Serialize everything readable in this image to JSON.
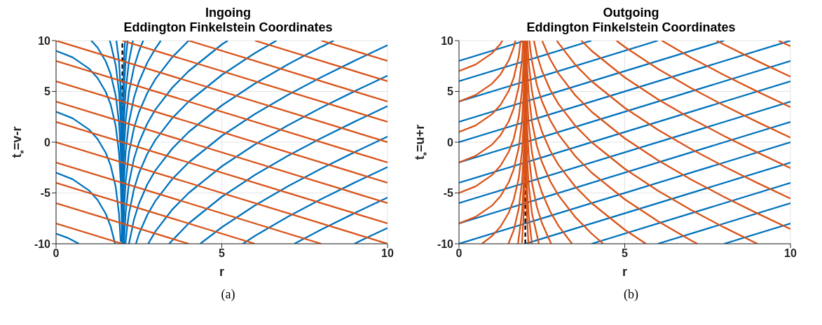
{
  "chart_data": [
    {
      "type": "line",
      "title": "Ingoing",
      "subtitle": "Eddington Finkelstein Coordinates",
      "xlabel": "r",
      "ylabel": "t$_{*}$=v-r",
      "xlim": [
        0,
        10
      ],
      "xticks": [
        0,
        5,
        10
      ],
      "ylim": [
        -10,
        10
      ],
      "yticks": [
        -10,
        -5,
        0,
        5,
        10
      ],
      "grid": true,
      "annotations": [
        "(a)"
      ],
      "ref_lines": [
        {
          "axis": "x",
          "value": 2,
          "color": "#000000",
          "line_style": "dashed"
        }
      ],
      "series": [
        {
          "color": "#0072bd",
          "x": [
            0,
            0.5,
            1,
            1.25,
            1.5,
            1.65,
            1.8,
            1.9,
            1.95,
            1.98,
            1.988
          ],
          "values": [
            9,
            8.35,
            7.23,
            6.33,
            4.95,
            3.68,
            1.59,
            -1.08,
            -3.81,
            -7.44,
            -9.47
          ]
        },
        {
          "color": "#0072bd",
          "x": [
            0,
            0.5,
            1,
            1.25,
            1.5,
            1.65,
            1.8,
            1.9,
            1.95
          ],
          "values": [
            3,
            2.35,
            1.23,
            0.33,
            -1.05,
            -2.32,
            -4.41,
            -7.08,
            -9.81
          ]
        },
        {
          "color": "#0072bd",
          "x": [
            0,
            0.5,
            1,
            1.25,
            1.5,
            1.65,
            1.78
          ],
          "values": [
            -3,
            -3.65,
            -4.77,
            -5.67,
            -7.05,
            -8.32,
            -10
          ]
        },
        {
          "color": "#0072bd",
          "x": [
            0,
            0.35,
            0.69
          ],
          "values": [
            -9,
            -9.42,
            -10
          ]
        },
        {
          "color": "#0072bd",
          "x": [
            1.06,
            1.25,
            1.5,
            1.65,
            1.8,
            1.9,
            1.95,
            1.98,
            1.99,
            1.995
          ],
          "values": [
            10,
            9.33,
            7.95,
            6.68,
            4.59,
            1.92,
            -0.81,
            -4.44,
            -7.2,
            -9.97
          ]
        },
        {
          "color": "#0072bd",
          "x": [
            1.62,
            1.65,
            1.8,
            1.9,
            1.95,
            1.98,
            1.99,
            1.997
          ],
          "values": [
            10,
            9.68,
            7.59,
            4.92,
            2.19,
            -1.44,
            -4.2,
            -9
          ]
        },
        {
          "color": "#0072bd",
          "x": [
            1.82,
            1.9,
            1.95,
            1.98,
            1.99,
            1.995,
            1.998
          ],
          "values": [
            10,
            7.92,
            5.19,
            1.56,
            -1.2,
            -3.97,
            -7.63
          ]
        },
        {
          "color": "#0072bd",
          "x": [
            9,
            9.5,
            10
          ],
          "values": [
            -10,
            -9.21,
            -8.45
          ]
        },
        {
          "color": "#0072bd",
          "x": [
            7.19,
            8,
            9,
            10
          ],
          "values": [
            -10,
            -8.61,
            -6.99,
            -5.45
          ]
        },
        {
          "color": "#0072bd",
          "x": [
            5.64,
            6,
            7,
            8,
            9,
            10
          ],
          "values": [
            -10,
            -9.23,
            -7.33,
            -5.61,
            -3.99,
            -2.45
          ]
        },
        {
          "color": "#0072bd",
          "x": [
            4.35,
            5,
            6,
            7,
            8,
            9,
            10
          ],
          "values": [
            -10,
            -8.38,
            -6.23,
            -4.33,
            -2.61,
            -0.99,
            0.55
          ]
        },
        {
          "color": "#0072bd",
          "x": [
            3.41,
            4,
            5,
            6,
            7,
            8,
            9,
            10
          ],
          "values": [
            -10,
            -8,
            -5.38,
            -3.23,
            -1.33,
            0.39,
            2.01,
            3.55
          ]
        },
        {
          "color": "#0072bd",
          "x": [
            2.78,
            3,
            3.5,
            4,
            5,
            6,
            7,
            8,
            9,
            10
          ],
          "values": [
            -10,
            -8.77,
            -6.65,
            -5,
            -2.38,
            -0.23,
            1.67,
            3.39,
            5.01,
            6.55
          ]
        },
        {
          "color": "#0072bd",
          "x": [
            2.41,
            2.5,
            2.75,
            3,
            3.5,
            4,
            5,
            6,
            7,
            8,
            9,
            10
          ],
          "values": [
            -10,
            -9.05,
            -7.17,
            -5.77,
            -3.65,
            -2,
            0.62,
            2.77,
            4.67,
            6.39,
            8.01,
            9.55
          ]
        },
        {
          "color": "#0072bd",
          "x": [
            2.2,
            2.35,
            2.5,
            2.75,
            3,
            3.5,
            4,
            5,
            6,
            7,
            8,
            8.38
          ],
          "values": [
            -10,
            -7.62,
            -6.05,
            -4.17,
            -2.77,
            -0.65,
            1,
            3.62,
            5.77,
            7.67,
            9.39,
            10
          ]
        },
        {
          "color": "#0072bd",
          "x": [
            2.095,
            2.15,
            2.2,
            2.35,
            2.5,
            2.75,
            3,
            3.5,
            4,
            5,
            6,
            6.65
          ],
          "values": [
            -10,
            -8.21,
            -7.01,
            -4.62,
            -3.05,
            -1.17,
            0.23,
            2.35,
            4,
            6.62,
            8.77,
            10
          ]
        },
        {
          "color": "#0072bd",
          "x": [
            2.048,
            2.1,
            2.2,
            2.35,
            2.5,
            2.75,
            3,
            3.5,
            4,
            5,
            5.18
          ],
          "values": [
            -10,
            -6.88,
            -4.01,
            -1.62,
            -0.05,
            1.83,
            3.23,
            5.35,
            7,
            9.62,
            10
          ]
        },
        {
          "color": "#0072bd",
          "x": [
            2.021,
            2.05,
            2.1,
            2.2,
            2.35,
            2.5,
            2.75,
            3,
            3.5,
            4
          ],
          "values": [
            -10,
            -6.71,
            -3.88,
            -1.01,
            1.38,
            2.95,
            4.83,
            6.23,
            8.35,
            10
          ]
        },
        {
          "color": "#0072bd",
          "x": [
            2.011,
            2.02,
            2.05,
            2.1,
            2.2,
            2.35,
            2.5,
            2.75,
            3,
            3.16
          ],
          "values": [
            -10,
            -7.4,
            -3.71,
            -0.88,
            1.99,
            4.38,
            5.95,
            7.83,
            9.23,
            10
          ]
        },
        {
          "color": "#0072bd",
          "x": [
            2.005,
            2.01,
            2.02,
            2.05,
            2.1,
            2.2,
            2.35,
            2.5,
            2.63
          ],
          "values": [
            -10,
            -7.18,
            -4.4,
            -0.71,
            2.12,
            4.99,
            7.38,
            8.95,
            10
          ]
        },
        {
          "color": "#0072bd",
          "x": [
            2.0025,
            2.005,
            2.01,
            2.02,
            2.05,
            2.1,
            2.2,
            2.32
          ],
          "values": [
            -10,
            -6.96,
            -4.18,
            -1.4,
            2.29,
            5.12,
            7.99,
            10
          ]
        },
        {
          "color": "#0072bd",
          "x": [
            2.0012,
            2.002,
            2.005,
            2.01,
            2.02,
            2.05,
            2.1,
            2.16
          ],
          "values": [
            -9.68,
            -7.6,
            -3.96,
            -1.18,
            1.6,
            5.29,
            8.12,
            10
          ]
        },
        {
          "color": "#0072bd",
          "x": [
            2.005,
            2.01,
            2.02,
            2.05,
            2.08
          ],
          "values": [
            -0.96,
            1.82,
            4.6,
            8.29,
            10
          ]
        },
        {
          "color": "#d95319",
          "x": [
            0,
            2
          ],
          "values": [
            -8,
            -10
          ]
        },
        {
          "color": "#d95319",
          "x": [
            0,
            4
          ],
          "values": [
            -6,
            -10
          ]
        },
        {
          "color": "#d95319",
          "x": [
            0,
            6
          ],
          "values": [
            -4,
            -10
          ]
        },
        {
          "color": "#d95319",
          "x": [
            0,
            8
          ],
          "values": [
            -2,
            -10
          ]
        },
        {
          "color": "#d95319",
          "x": [
            0,
            10
          ],
          "values": [
            0,
            -10
          ]
        },
        {
          "color": "#d95319",
          "x": [
            0,
            10
          ],
          "values": [
            2,
            -8
          ]
        },
        {
          "color": "#d95319",
          "x": [
            0,
            10
          ],
          "values": [
            4,
            -6
          ]
        },
        {
          "color": "#d95319",
          "x": [
            0,
            10
          ],
          "values": [
            6,
            -4
          ]
        },
        {
          "color": "#d95319",
          "x": [
            0,
            10
          ],
          "values": [
            8,
            -2
          ]
        },
        {
          "color": "#d95319",
          "x": [
            0,
            10
          ],
          "values": [
            10,
            0
          ]
        },
        {
          "color": "#d95319",
          "x": [
            2,
            10
          ],
          "values": [
            10,
            2
          ]
        },
        {
          "color": "#d95319",
          "x": [
            4,
            10
          ],
          "values": [
            10,
            4
          ]
        },
        {
          "color": "#d95319",
          "x": [
            6,
            10
          ],
          "values": [
            10,
            6
          ]
        },
        {
          "color": "#d95319",
          "x": [
            8,
            10
          ],
          "values": [
            10,
            8
          ]
        }
      ]
    },
    {
      "type": "line",
      "title": "Outgoing",
      "subtitle": "Eddington Finkelstein Coordinates",
      "xlabel": "r",
      "ylabel": "t$_{*}$=u+r",
      "xlim": [
        0,
        10
      ],
      "xticks": [
        0,
        5,
        10
      ],
      "ylim": [
        -10,
        10
      ],
      "yticks": [
        -10,
        -5,
        0,
        5,
        10
      ],
      "grid": true,
      "annotations": [
        "(b)"
      ],
      "ref_lines": [
        {
          "axis": "x",
          "value": 2,
          "color": "#000000",
          "line_style": "dashed"
        }
      ],
      "series": [
        {
          "color": "#0072bd",
          "x": [
            0,
            2
          ],
          "values": [
            8,
            10
          ]
        },
        {
          "color": "#0072bd",
          "x": [
            0,
            4
          ],
          "values": [
            6,
            10
          ]
        },
        {
          "color": "#0072bd",
          "x": [
            0,
            6
          ],
          "values": [
            4,
            10
          ]
        },
        {
          "color": "#0072bd",
          "x": [
            0,
            8
          ],
          "values": [
            2,
            10
          ]
        },
        {
          "color": "#0072bd",
          "x": [
            0,
            10
          ],
          "values": [
            0,
            10
          ]
        },
        {
          "color": "#0072bd",
          "x": [
            0,
            10
          ],
          "values": [
            -2,
            8
          ]
        },
        {
          "color": "#0072bd",
          "x": [
            0,
            10
          ],
          "values": [
            -4,
            6
          ]
        },
        {
          "color": "#0072bd",
          "x": [
            0,
            10
          ],
          "values": [
            -6,
            4
          ]
        },
        {
          "color": "#0072bd",
          "x": [
            0,
            10
          ],
          "values": [
            -8,
            2
          ]
        },
        {
          "color": "#0072bd",
          "x": [
            0,
            10
          ],
          "values": [
            -10,
            0
          ]
        },
        {
          "color": "#0072bd",
          "x": [
            2,
            10
          ],
          "values": [
            -10,
            -2
          ]
        },
        {
          "color": "#0072bd",
          "x": [
            4,
            10
          ],
          "values": [
            -10,
            -4
          ]
        },
        {
          "color": "#0072bd",
          "x": [
            6,
            10
          ],
          "values": [
            -10,
            -6
          ]
        },
        {
          "color": "#0072bd",
          "x": [
            8,
            10
          ],
          "values": [
            -10,
            -8
          ]
        },
        {
          "color": "#d95319",
          "x": [
            0,
            0.5,
            1,
            1.25,
            1.31
          ],
          "values": [
            7,
            7.65,
            8.77,
            9.67,
            10
          ]
        },
        {
          "color": "#d95319",
          "x": [
            0,
            0.5,
            1,
            1.25,
            1.5,
            1.65,
            1.7
          ],
          "values": [
            4,
            4.65,
            5.77,
            6.67,
            8.05,
            9.32,
            10
          ]
        },
        {
          "color": "#d95319",
          "x": [
            0,
            0.5,
            1,
            1.25,
            1.5,
            1.65,
            1.8,
            1.86
          ],
          "values": [
            1,
            1.65,
            2.77,
            3.67,
            5.05,
            6.32,
            8.41,
            10
          ]
        },
        {
          "color": "#d95319",
          "x": [
            0,
            0.5,
            1,
            1.25,
            1.5,
            1.65,
            1.8,
            1.9,
            1.937
          ],
          "values": [
            -2,
            -1.35,
            -0.23,
            0.67,
            2.05,
            3.32,
            5.41,
            8.08,
            10
          ]
        },
        {
          "color": "#d95319",
          "x": [
            0,
            0.5,
            1,
            1.25,
            1.5,
            1.65,
            1.8,
            1.9,
            1.95,
            1.97
          ],
          "values": [
            -5,
            -4.35,
            -3.23,
            -2.33,
            -0.95,
            0.32,
            2.41,
            5.08,
            7.81,
            10
          ]
        },
        {
          "color": "#d95319",
          "x": [
            0,
            0.5,
            1,
            1.25,
            1.5,
            1.65,
            1.8,
            1.9,
            1.95,
            1.98,
            1.985
          ],
          "values": [
            -8,
            -7.35,
            -6.23,
            -5.33,
            -3.95,
            -2.68,
            -0.59,
            2.08,
            4.81,
            8.44,
            10
          ]
        },
        {
          "color": "#d95319",
          "x": [
            0.69,
            1,
            1.25,
            1.5,
            1.65,
            1.8,
            1.9,
            1.95,
            1.98,
            1.99
          ],
          "values": [
            -10,
            -9.23,
            -8.33,
            -6.95,
            -5.68,
            -3.59,
            -0.92,
            1.81,
            5.44,
            8.2
          ]
        },
        {
          "color": "#d95319",
          "x": [
            1.49,
            1.65,
            1.8,
            1.9,
            1.95,
            1.98,
            1.99,
            1.995
          ],
          "values": [
            -10,
            -8.68,
            -6.59,
            -3.92,
            -1.19,
            2.44,
            5.2,
            7.97
          ]
        },
        {
          "color": "#d95319",
          "x": [
            1.78,
            1.9,
            1.95,
            1.98,
            1.99,
            1.995,
            1.998
          ],
          "values": [
            -10,
            -6.92,
            -4.19,
            -0.56,
            2.2,
            4.97,
            8.63
          ]
        },
        {
          "color": "#d95319",
          "x": [
            1.9,
            1.95,
            1.98,
            1.99,
            1.995,
            1.998
          ],
          "values": [
            -9.92,
            -7.19,
            -3.56,
            -0.8,
            1.97,
            5.63
          ]
        },
        {
          "color": "#d95319",
          "x": [
            9.64,
            10
          ],
          "values": [
            10,
            9.45
          ]
        },
        {
          "color": "#d95319",
          "x": [
            7.77,
            8,
            9,
            10
          ],
          "values": [
            10,
            9.61,
            7.99,
            6.45
          ]
        },
        {
          "color": "#d95319",
          "x": [
            6.12,
            7,
            8,
            9,
            10
          ],
          "values": [
            10,
            8.33,
            6.61,
            4.99,
            3.45
          ]
        },
        {
          "color": "#d95319",
          "x": [
            4.75,
            5,
            6,
            7,
            8,
            9,
            10
          ],
          "values": [
            10,
            9.38,
            7.23,
            5.33,
            3.61,
            1.99,
            0.45
          ]
        },
        {
          "color": "#d95319",
          "x": [
            3.69,
            4,
            5,
            6,
            7,
            8,
            9,
            10
          ],
          "values": [
            10,
            9,
            6.38,
            4.23,
            2.33,
            0.61,
            -1.01,
            -2.55
          ]
        },
        {
          "color": "#d95319",
          "x": [
            2.95,
            3,
            3.5,
            4,
            5,
            6,
            7,
            8,
            9,
            10
          ],
          "values": [
            10,
            9.77,
            7.65,
            6,
            3.38,
            1.23,
            -0.67,
            -2.39,
            -4.01,
            -5.55
          ]
        },
        {
          "color": "#d95319",
          "x": [
            2.51,
            2.75,
            3,
            3.5,
            4,
            5,
            6,
            7,
            8,
            9,
            10
          ],
          "values": [
            9.96,
            8.17,
            6.77,
            4.65,
            3,
            0.38,
            -1.77,
            -3.67,
            -5.39,
            -7.01,
            -8.55
          ]
        },
        {
          "color": "#d95319",
          "x": [
            2.26,
            2.35,
            2.5,
            2.75,
            3,
            3.5,
            4,
            5,
            6,
            7,
            8,
            9
          ],
          "values": [
            10,
            8.62,
            7.05,
            5.17,
            3.77,
            1.65,
            0,
            -2.62,
            -4.77,
            -6.67,
            -8.39,
            -10
          ]
        },
        {
          "color": "#d95319",
          "x": [
            2.126,
            2.15,
            2.2,
            2.35,
            2.5,
            2.75,
            3,
            3.5,
            4,
            5,
            6,
            7,
            7.19
          ],
          "values": [
            10,
            9.21,
            8.01,
            5.62,
            4.05,
            2.17,
            0.77,
            -1.35,
            -3,
            -5.62,
            -7.77,
            -9.67,
            -10
          ]
        },
        {
          "color": "#d95319",
          "x": [
            2.063,
            2.1,
            2.2,
            2.35,
            2.5,
            2.75,
            3,
            3.5,
            4,
            5,
            5.64
          ],
          "values": [
            10,
            7.88,
            5.01,
            2.62,
            1.05,
            -0.83,
            -2.23,
            -4.35,
            -6,
            -8.62,
            -10
          ]
        },
        {
          "color": "#d95319",
          "x": [
            2.029,
            2.05,
            2.1,
            2.2,
            2.35,
            2.5,
            2.75,
            3,
            3.5,
            4,
            4.35
          ],
          "values": [
            10,
            7.71,
            4.88,
            2.01,
            -0.38,
            -1.95,
            -3.83,
            -5.23,
            -7.35,
            -9,
            -10
          ]
        },
        {
          "color": "#d95319",
          "x": [
            2.014,
            2.02,
            2.05,
            2.1,
            2.2,
            2.35,
            2.5,
            2.75,
            3,
            3.41
          ],
          "values": [
            10,
            8.4,
            4.71,
            1.88,
            -0.99,
            -3.38,
            -4.95,
            -6.83,
            -8.23,
            -10
          ]
        },
        {
          "color": "#d95319",
          "x": [
            2.007,
            2.01,
            2.02,
            2.05,
            2.1,
            2.2,
            2.35,
            2.5,
            2.78
          ],
          "values": [
            10,
            8.18,
            5.4,
            1.71,
            -1.12,
            -3.99,
            -6.38,
            -7.95,
            -10
          ]
        },
        {
          "color": "#d95319",
          "x": [
            2.003,
            2.005,
            2.01,
            2.02,
            2.05,
            2.1,
            2.2,
            2.41
          ],
          "values": [
            10,
            7.96,
            5.18,
            2.4,
            -1.29,
            -4.12,
            -6.99,
            -10
          ]
        },
        {
          "color": "#d95319",
          "x": [
            2.002,
            2.005,
            2.01,
            2.02,
            2.05,
            2.1,
            2.2
          ],
          "values": [
            8.6,
            4.96,
            2.18,
            -0.6,
            -4.29,
            -7.12,
            -10
          ]
        },
        {
          "color": "#d95319",
          "x": [
            2.005,
            2.01,
            2.02,
            2.05,
            2.095
          ],
          "values": [
            1.96,
            -0.82,
            -3.6,
            -7.29,
            -10
          ]
        }
      ]
    }
  ]
}
